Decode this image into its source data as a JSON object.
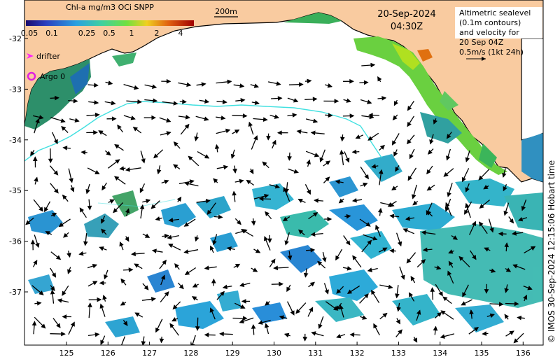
{
  "legend": {
    "title": "Chl-a mg/m3 OCi SNPP",
    "ticks": [
      "0.05",
      "0.1",
      "0.25",
      "0.5",
      "1",
      "2",
      "4"
    ],
    "colors": [
      "#1a0a6e",
      "#2a3fc0",
      "#2aa0e0",
      "#40d0a0",
      "#70e040",
      "#f0d020",
      "#e06010",
      "#a00000"
    ]
  },
  "scale_bar": {
    "label": "200m"
  },
  "date": {
    "day": "20-Sep-2024",
    "time": "04:30Z"
  },
  "info_box": {
    "lines": [
      "Altimetric sealevel",
      "(0.1m contours)",
      "and velocity for",
      "20 Sep 04Z",
      "0.5m/s (1kt 24h)"
    ]
  },
  "markers": {
    "drifter_label": "drifter",
    "argo_label": "Argo 0"
  },
  "axes": {
    "x_ticks": [
      "125",
      "126",
      "127",
      "128",
      "129",
      "130",
      "131",
      "132",
      "133",
      "134",
      "135",
      "136"
    ],
    "y_ticks": [
      "-32",
      "-33",
      "-34",
      "-35",
      "-36",
      "-37"
    ]
  },
  "credit": "© IMOS 30-Sep-2024 12:15:06 Hobart time",
  "colors": {
    "land": "#f9cba0",
    "ocean": "#ffffff",
    "contour": "#40e0e0",
    "drifter": "#ff20ff",
    "argo": "#e020e0"
  }
}
